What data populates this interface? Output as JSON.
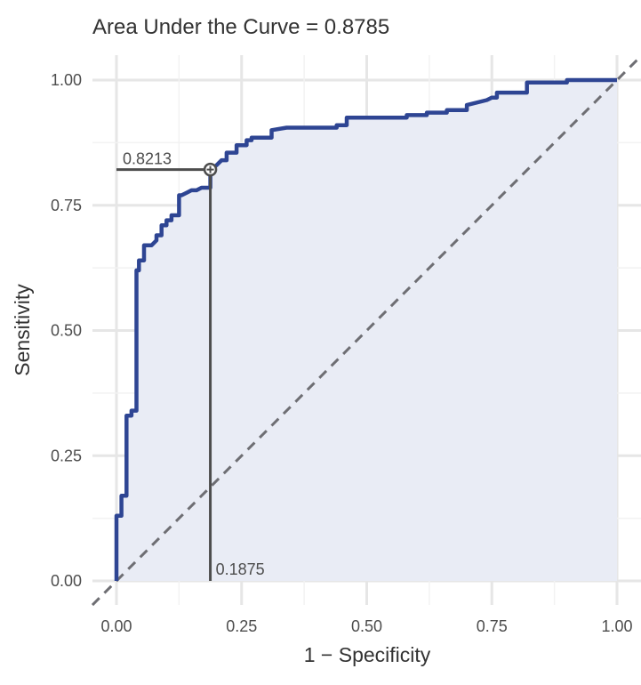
{
  "chart_data": {
    "type": "line",
    "title": "Area Under the Curve = 0.8785",
    "xlabel": "1 − Specificity",
    "ylabel": "Sensitivity",
    "xlim": [
      0,
      1
    ],
    "ylim": [
      0,
      1
    ],
    "x_ticks": [
      "0.00",
      "0.25",
      "0.50",
      "0.75",
      "1.00"
    ],
    "y_ticks": [
      "0.00",
      "0.25",
      "0.50",
      "0.75",
      "1.00"
    ],
    "grid": true,
    "line_color": "#2e4593",
    "fill_color": "#e9ecf5",
    "diagonal_color": "#6e6e73",
    "marker_color": "#4d4d4d",
    "series": [
      {
        "x": [
          0,
          0,
          0.01,
          0.01,
          0.02,
          0.02,
          0.03,
          0.03,
          0.04,
          0.04,
          0.045,
          0.045,
          0.055,
          0.055,
          0.07,
          0.08,
          0.08,
          0.09,
          0.09,
          0.1,
          0.1,
          0.11,
          0.11,
          0.125,
          0.125,
          0.13,
          0.14,
          0.15,
          0.16,
          0.17,
          0.175,
          0.1875,
          0.1875,
          0.2,
          0.21,
          0.22,
          0.22,
          0.24,
          0.24,
          0.26,
          0.26,
          0.27,
          0.27,
          0.31,
          0.31,
          0.34,
          0.44,
          0.44,
          0.46,
          0.46,
          0.58,
          0.58,
          0.62,
          0.62,
          0.66,
          0.66,
          0.7,
          0.7,
          0.74,
          0.75,
          0.76,
          0.76,
          0.82,
          0.82,
          0.9,
          0.9,
          1
        ],
        "y": [
          0,
          0.13,
          0.13,
          0.17,
          0.17,
          0.33,
          0.33,
          0.34,
          0.34,
          0.62,
          0.62,
          0.64,
          0.64,
          0.67,
          0.67,
          0.68,
          0.69,
          0.69,
          0.71,
          0.71,
          0.72,
          0.72,
          0.73,
          0.73,
          0.77,
          0.77,
          0.775,
          0.78,
          0.78,
          0.785,
          0.785,
          0.785,
          0.8213,
          0.83,
          0.84,
          0.84,
          0.855,
          0.855,
          0.87,
          0.87,
          0.88,
          0.88,
          0.885,
          0.885,
          0.9,
          0.905,
          0.905,
          0.91,
          0.91,
          0.925,
          0.925,
          0.93,
          0.93,
          0.935,
          0.935,
          0.94,
          0.94,
          0.95,
          0.96,
          0.965,
          0.965,
          0.975,
          0.975,
          0.995,
          0.995,
          1,
          1
        ]
      }
    ],
    "cutoff": {
      "x": 0.1875,
      "y": 0.8213,
      "x_label": "0.1875",
      "y_label": "0.8213"
    }
  }
}
